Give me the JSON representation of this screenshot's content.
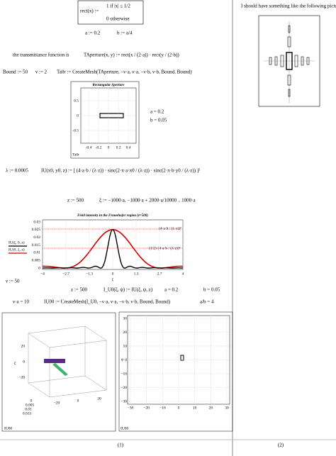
{
  "worksheet": {
    "rect_def": {
      "lhs": "rect(x) :=",
      "case1": "1  if  |x| ≤ 1/2",
      "case2": "0   otherwise"
    },
    "a_def": "a := 0.2",
    "b_def": "b := a/4",
    "transmittance_text": "the transmittance function is",
    "taperture_def": "TAperture(x, y) := rect(x / (2·a)) · rect(y / (2·b))",
    "bound_def": "Bound := 50",
    "nu_def": "ν := 2",
    "ta0r_def": "Ta0r := CreateMesh(TAperture, −ν·a, ν·a, −ν·b, ν·b, Bound, Bound)",
    "plot1": {
      "title": "Rectangular Aperture",
      "xticks": [
        "-0.4",
        "-0.2",
        "0",
        "0.2",
        "0.4"
      ],
      "yticks": [
        "0.5",
        "0",
        "-0.5"
      ],
      "label": "Ta0r"
    },
    "a_val": "a = 0.2",
    "b_val": "b = 0.05",
    "lambda_def": "λ := 0.0005",
    "iu_def": "IU(x0, y0, z) := [ (4·a·b / (λ·z)) · sinc(2·π·a·x0 / (λ·z)) · sinc(2·π·b·y0 / (λ·z)) ]²",
    "z_def": "z := 500",
    "xi_def": "ξ := −1000·a, −1000·a + 2000·a/10000 .. 1000·a",
    "plot2": {
      "title": "Field intensity in the Fraunhofer region (z=500)",
      "yticks": [
        "0.03",
        "0.025",
        "0.02",
        "0.015",
        "0.01",
        "0.005",
        "0"
      ],
      "xticks": [
        "−4",
        "−2.7",
        "−1.3",
        "0",
        "1.3",
        "2.7",
        "4"
      ],
      "legend": [
        "IU(ξ, 0, z)",
        "IU(0, ξ, z)"
      ],
      "xlabel": "ξ",
      "ann1": "(4·a·b / (λ·z))²",
      "ann2": "(1/2)·(4·a·b / (λ·z))²"
    },
    "nu50": "ν := 50",
    "z_def2": "z := 500",
    "iu0_def": "I_U0(ξ, ψ) := IU(ξ, ψ, z)",
    "a_val2": "a = 0.2",
    "b_val2": "b = 0.05",
    "nua": "ν·a = 10",
    "iu00_def": "IU00 := CreateMesh(I_U0, −ν·a, ν·a, −ν·b, ν·b, Bound, Bound)",
    "ab": "a/b = 4",
    "plot3": {
      "zticks": [
        "20",
        "0",
        "−20"
      ],
      "xticks": [
        "0",
        "0.005",
        "0.01",
        "0.015"
      ],
      "yticks": [
        "−20",
        "0",
        "20"
      ],
      "axis": "ξ",
      "label": "IU00"
    },
    "plot4": {
      "xticks": [
        "−30",
        "−20",
        "−10",
        "0",
        "10",
        "20",
        "30"
      ],
      "yticks": [
        "30",
        "20",
        "10",
        "0",
        "−10",
        "−20",
        "−30"
      ],
      "ylabel": "ψ",
      "label": "IU00"
    },
    "right_text": "I should have something like the following picture:",
    "caption1": "(1)",
    "caption2": "(2)"
  }
}
